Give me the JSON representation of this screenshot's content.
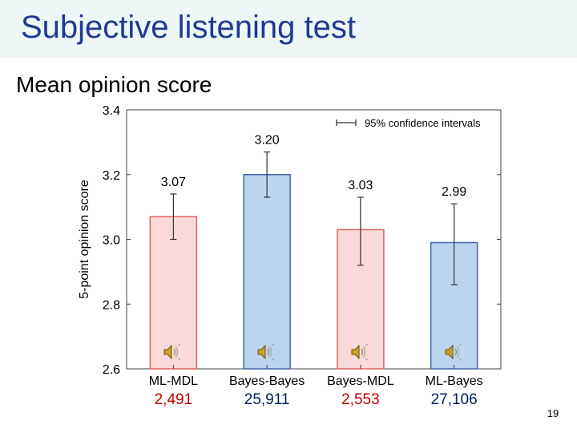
{
  "slide": {
    "title": "Subjective listening test",
    "subtitle": "Mean opinion score",
    "page_number": "19"
  },
  "chart_data": {
    "type": "bar",
    "title": "",
    "ylabel": "5-point opinion score",
    "xlabel": "",
    "ylim": [
      2.6,
      3.4
    ],
    "yticks": [
      "2.6",
      "2.8",
      "3.0",
      "3.2",
      "3.4"
    ],
    "categories": [
      "ML-MDL",
      "Bayes-Bayes",
      "Bayes-MDL",
      "ML-Bayes"
    ],
    "values": [
      3.07,
      3.2,
      3.03,
      2.99
    ],
    "value_labels": [
      "3.07",
      "3.20",
      "3.03",
      "2.99"
    ],
    "ci_low": [
      3.0,
      3.13,
      2.92,
      2.86
    ],
    "ci_high": [
      3.14,
      3.27,
      3.13,
      3.11
    ],
    "bar_fill": [
      "#f9d9d9",
      "#bcd4ee",
      "#f9d9d9",
      "#bcd4ee"
    ],
    "bar_edge": [
      "#e06060",
      "#4466aa",
      "#e06060",
      "#4466aa"
    ],
    "legend": {
      "label": "95% confidence intervals",
      "placement": "top-right"
    },
    "counts": [
      "2,491",
      "25,911",
      "2,553",
      "27,106"
    ],
    "count_colors": [
      "#c00000",
      "#002060",
      "#c00000",
      "#002060"
    ],
    "speaker_icon": "speaker-icon"
  }
}
